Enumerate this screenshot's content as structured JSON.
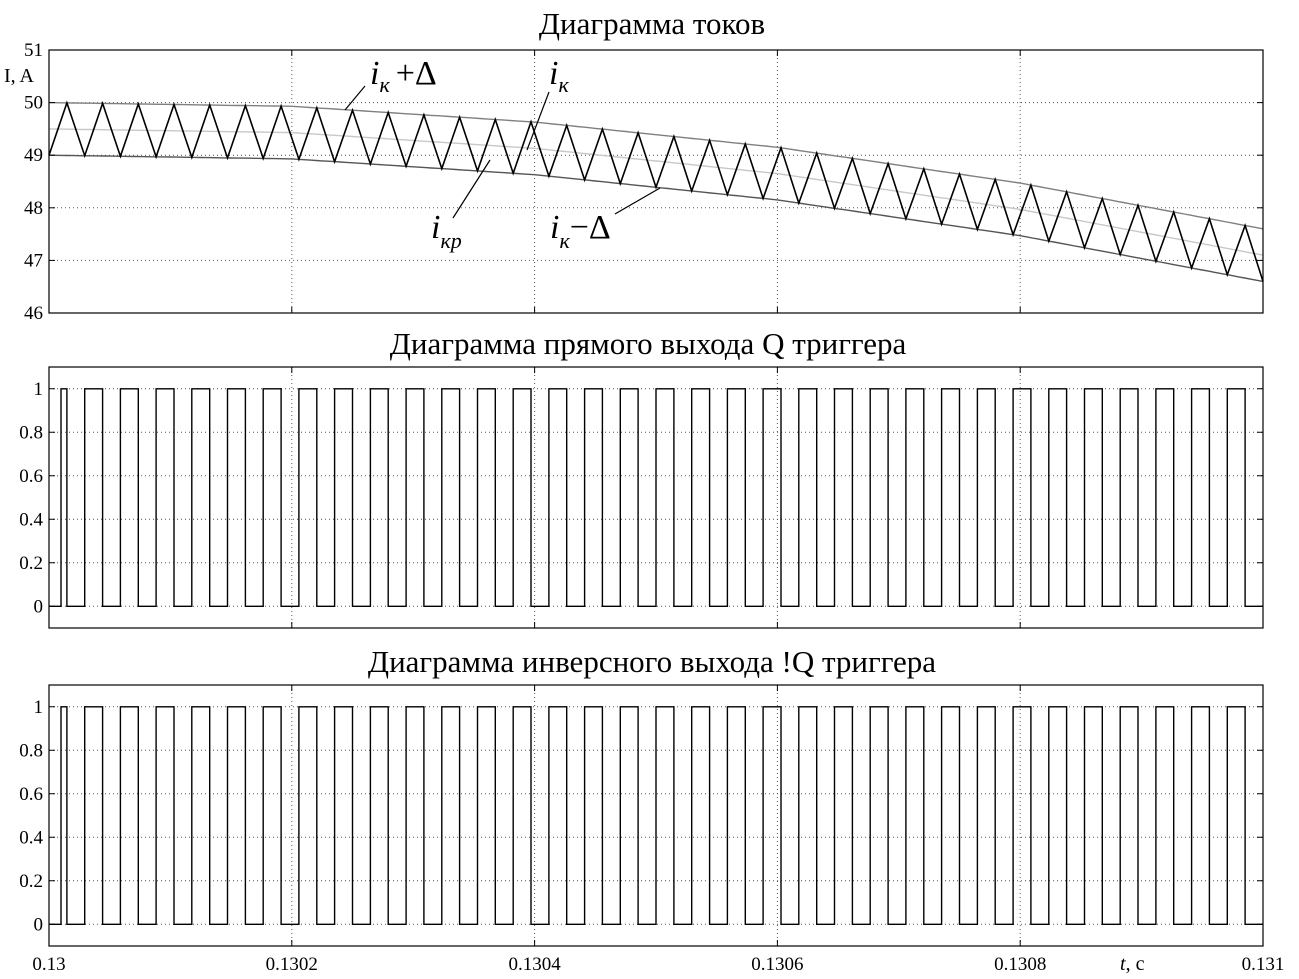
{
  "chart_data": [
    {
      "type": "line",
      "title": "Диаграмма токов",
      "ylabel": "I, A",
      "xlim": [
        0.13,
        0.131
      ],
      "ylim": [
        46,
        51
      ],
      "yticks": [
        46,
        47,
        48,
        49,
        50,
        51
      ],
      "xticks": [
        0.13,
        0.1302,
        0.1304,
        0.1306,
        0.1308,
        0.131
      ],
      "grid": true,
      "series": [
        {
          "name": "iк+Δ",
          "color": "#808080",
          "x": [
            0.13,
            0.1302,
            0.1304,
            0.1306,
            0.1308,
            0.131
          ],
          "y": [
            50.0,
            49.93,
            49.63,
            49.15,
            48.47,
            47.6
          ]
        },
        {
          "name": "iк",
          "color": "#c8c8c8",
          "x": [
            0.13,
            0.1302,
            0.1304,
            0.1306,
            0.1308,
            0.131
          ],
          "y": [
            49.5,
            49.43,
            49.13,
            48.65,
            47.97,
            47.1
          ]
        },
        {
          "name": "iк−Δ",
          "color": "#555555",
          "x": [
            0.13,
            0.1302,
            0.1304,
            0.1306,
            0.1308,
            0.131
          ],
          "y": [
            49.0,
            48.93,
            48.63,
            48.15,
            47.47,
            46.6
          ]
        },
        {
          "name": "iкр",
          "color": "#000000",
          "type": "triangle",
          "cycles": 34,
          "bounds": [
            "iк−Δ",
            "iк+Δ"
          ]
        }
      ],
      "annotations": [
        {
          "main": "i",
          "sub": "к",
          "suffix": "+Δ"
        },
        {
          "main": "i",
          "sub": "к",
          "suffix": ""
        },
        {
          "main": "i",
          "sub": "кр",
          "suffix": ""
        },
        {
          "main": "i",
          "sub": "к",
          "suffix": "−Δ"
        }
      ]
    },
    {
      "type": "line",
      "title": "Диаграмма прямого выхода Q триггера",
      "xlim": [
        0.13,
        0.131
      ],
      "ylim": [
        -0.1,
        1.1
      ],
      "yticks": [
        0,
        0.2,
        0.4,
        0.6,
        0.8,
        1
      ],
      "ytick_labels": [
        "0",
        "0.2",
        "0.4",
        "0.6",
        "0.8",
        "1"
      ],
      "grid": true,
      "series": [
        {
          "name": "Q",
          "type": "square",
          "cycles": 34,
          "duty": 0.5,
          "start_high": true
        }
      ]
    },
    {
      "type": "line",
      "title": "Диаграмма инверсного выхода !Q триггера",
      "xlabel": "t, c",
      "xlim": [
        0.13,
        0.131
      ],
      "ylim": [
        -0.1,
        1.1
      ],
      "yticks": [
        0,
        0.2,
        0.4,
        0.6,
        0.8,
        1
      ],
      "ytick_labels": [
        "0",
        "0.2",
        "0.4",
        "0.6",
        "0.8",
        "1"
      ],
      "xticks": [
        0.13,
        0.1302,
        0.1304,
        0.1306,
        0.1308,
        0.131
      ],
      "xtick_labels": [
        "0.13",
        "0.1302",
        "0.1304",
        "0.1306",
        "0.1308",
        "0.131"
      ],
      "grid": true,
      "series": [
        {
          "name": "!Q",
          "type": "square",
          "cycles": 34,
          "duty": 0.5,
          "start_high": true
        }
      ]
    }
  ],
  "xlabel_italic": "t",
  "xlabel_rest": ", c"
}
